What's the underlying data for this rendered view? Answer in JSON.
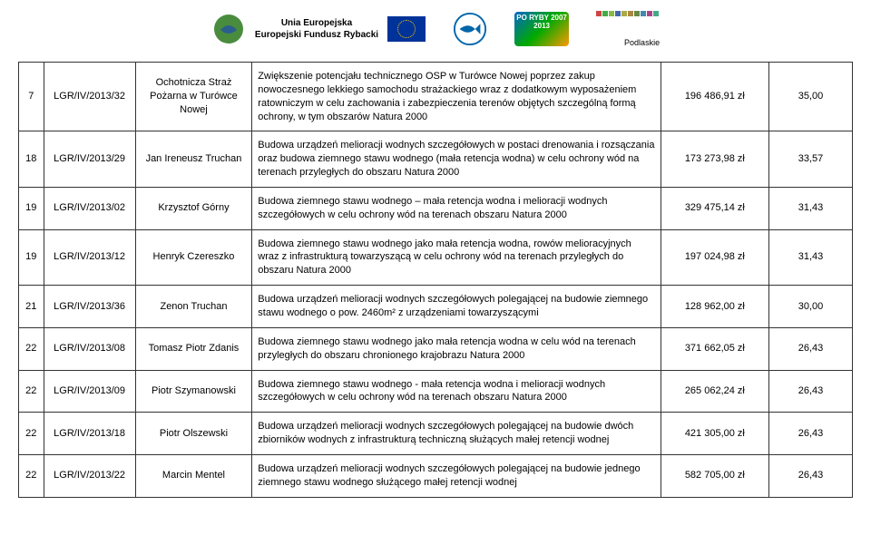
{
  "header": {
    "title_line1": "Unia Europejska",
    "title_line2": "Europejski Fundusz Rybacki",
    "poryby": "PO RYBY 2007 2013",
    "podlaskie": "Podlaskie"
  },
  "rows": [
    {
      "num": "7",
      "ref": "LGR/IV/2013/32",
      "name": "Ochotnicza Straż Pożarna w Turówce Nowej",
      "desc": "Zwiększenie potencjału technicznego OSP w Turówce Nowej poprzez zakup nowoczesnego lekkiego samochodu strażackiego wraz z dodatkowym wyposażeniem ratowniczym w celu zachowania i zabezpieczenia terenów objętych szczególną formą ochrony, w tym obszarów Natura 2000",
      "amount": "196 486,91 zł",
      "pts": "35,00"
    },
    {
      "num": "18",
      "ref": "LGR/IV/2013/29",
      "name": "Jan Ireneusz Truchan",
      "desc": "Budowa urządzeń melioracji wodnych szczegółowych w postaci drenowania i rozsączania oraz budowa ziemnego stawu wodnego (mała retencja wodna) w celu ochrony wód na terenach przyległych do obszaru Natura 2000",
      "amount": "173 273,98 zł",
      "pts": "33,57"
    },
    {
      "num": "19",
      "ref": "LGR/IV/2013/02",
      "name": "Krzysztof Górny",
      "desc": "Budowa ziemnego stawu wodnego – mała retencja wodna i melioracji wodnych szczegółowych w celu ochrony wód na terenach obszaru Natura 2000",
      "amount": "329 475,14 zł",
      "pts": "31,43"
    },
    {
      "num": "19",
      "ref": "LGR/IV/2013/12",
      "name": "Henryk Czereszko",
      "desc": "Budowa ziemnego stawu wodnego jako mała retencja wodna, rowów melioracyjnych wraz z infrastrukturą towarzyszącą w celu ochrony wód na terenach przyległych do obszaru Natura 2000",
      "amount": "197 024,98 zł",
      "pts": "31,43"
    },
    {
      "num": "21",
      "ref": "LGR/IV/2013/36",
      "name": "Zenon Truchan",
      "desc": "Budowa urządzeń melioracji wodnych szczegółowych polegającej na budowie ziemnego stawu wodnego o pow. 2460m² z urządzeniami towarzyszącymi",
      "amount": "128 962,00 zł",
      "pts": "30,00"
    },
    {
      "num": "22",
      "ref": "LGR/IV/2013/08",
      "name": "Tomasz Piotr Zdanis",
      "desc": "Budowa ziemnego stawu wodnego jako mała retencja wodna w celu wód na terenach przyległych do obszaru chronionego krajobrazu Natura 2000",
      "amount": "371 662,05 zł",
      "pts": "26,43"
    },
    {
      "num": "22",
      "ref": "LGR/IV/2013/09",
      "name": "Piotr Szymanowski",
      "desc": "Budowa ziemnego stawu wodnego - mała retencja wodna i melioracji wodnych szczegółowych w celu ochrony wód na terenach obszaru Natura 2000",
      "amount": "265 062,24 zł",
      "pts": "26,43"
    },
    {
      "num": "22",
      "ref": "LGR/IV/2013/18",
      "name": "Piotr Olszewski",
      "desc": "Budowa urządzeń melioracji wodnych szczegółowych polegającej na budowie dwóch zbiorników wodnych z infrastrukturą techniczną służących małej retencji wodnej",
      "amount": "421 305,00 zł",
      "pts": "26,43"
    },
    {
      "num": "22",
      "ref": "LGR/IV/2013/22",
      "name": "Marcin Mentel",
      "desc": "Budowa urządzeń melioracji wodnych szczegółowych polegającej na budowie jednego ziemnego stawu wodnego służącego małej retencji wodnej",
      "amount": "582 705,00 zł",
      "pts": "26,43"
    }
  ]
}
